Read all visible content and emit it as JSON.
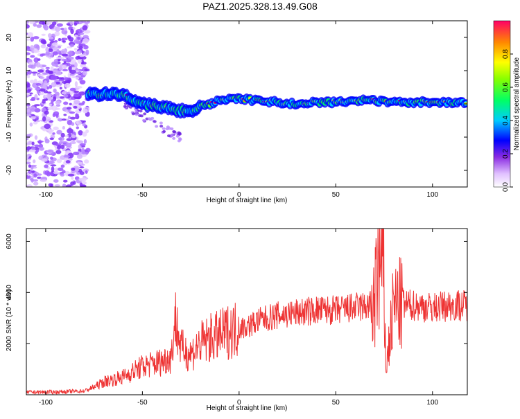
{
  "title": "PAZ1.2025.328.13.49.G08",
  "chart_data": [
    {
      "type": "heatmap",
      "xlabel": "Height of straight line (km)",
      "ylabel": "Frequency (Hz)",
      "xlim": [
        -110,
        118
      ],
      "ylim": [
        -25,
        25
      ],
      "xticks": [
        -100,
        -50,
        0,
        50,
        100
      ],
      "yticks": [
        -20,
        -10,
        0,
        10,
        20
      ],
      "colorbar": {
        "label": "Normalized spectral amplitude",
        "range": [
          0,
          1
        ],
        "ticks": [
          "0.0",
          "0.2",
          "0.4",
          "0.6",
          "0.8"
        ]
      },
      "ridge": {
        "x": [
          -78,
          -70,
          -60,
          -50,
          -40,
          -30,
          -25,
          -20,
          -10,
          0,
          10,
          20,
          30,
          40,
          50,
          60,
          70,
          80,
          90,
          100,
          110,
          118
        ],
        "freq": [
          3,
          3,
          2.5,
          0,
          -1,
          -2,
          -2,
          -1,
          1,
          1.5,
          1,
          0.5,
          0,
          0.5,
          0.5,
          1,
          1,
          0.5,
          0.5,
          0.5,
          0.5,
          0.5
        ]
      }
    },
    {
      "type": "line",
      "xlabel": "Height of straight line (km)",
      "ylabel": "SNR (10 * v/v)",
      "xlim": [
        -110,
        118
      ],
      "ylim": [
        0,
        6500
      ],
      "xticks": [
        -100,
        -50,
        0,
        50,
        100
      ],
      "yticks": [
        2000,
        4000,
        6000
      ],
      "series": [
        {
          "name": "SNR",
          "color": "#ee3333",
          "x": [
            -110,
            -100,
            -90,
            -80,
            -75,
            -70,
            -65,
            -60,
            -55,
            -50,
            -45,
            -40,
            -35,
            -33,
            -30,
            -25,
            -20,
            -15,
            -10,
            -5,
            0,
            5,
            10,
            20,
            30,
            40,
            50,
            60,
            70,
            74,
            76,
            80,
            90,
            100,
            110,
            118
          ],
          "y": [
            100,
            100,
            120,
            150,
            300,
            500,
            600,
            700,
            900,
            1100,
            1200,
            1300,
            1500,
            3000,
            1800,
            1600,
            2000,
            2200,
            2300,
            2500,
            2600,
            2700,
            2900,
            3100,
            3200,
            3300,
            3300,
            3400,
            3500,
            6500,
            1000,
            3500,
            3500,
            3400,
            3500,
            3500
          ]
        }
      ]
    }
  ]
}
